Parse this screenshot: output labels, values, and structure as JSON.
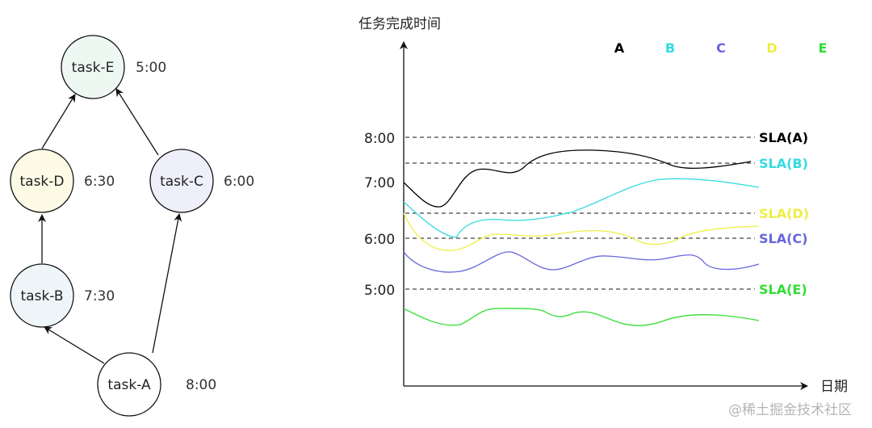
{
  "dag": {
    "nodes": [
      {
        "id": "E",
        "label": "task-E",
        "time": "5:00",
        "fill": "#eef8f3"
      },
      {
        "id": "D",
        "label": "task-D",
        "time": "6:30",
        "fill": "#fdfbe6"
      },
      {
        "id": "C",
        "label": "task-C",
        "time": "6:00",
        "fill": "#eeeffa"
      },
      {
        "id": "B",
        "label": "task-B",
        "time": "7:30",
        "fill": "#eef6f9"
      },
      {
        "id": "A",
        "label": "task-A",
        "time": "8:00",
        "fill": "#ffffff"
      }
    ],
    "edges": [
      {
        "from": "D",
        "to": "E"
      },
      {
        "from": "C",
        "to": "E"
      },
      {
        "from": "B",
        "to": "D"
      },
      {
        "from": "A",
        "to": "B"
      },
      {
        "from": "A",
        "to": "C"
      }
    ]
  },
  "chart": {
    "ylabel": "任务完成时间",
    "xlabel": "日期",
    "yticks": [
      "8:00",
      "7:00",
      "6:00",
      "5:00"
    ],
    "legend": [
      {
        "label": "A",
        "color": "#000000"
      },
      {
        "label": "B",
        "color": "#33dbe0"
      },
      {
        "label": "C",
        "color": "#6666dd"
      },
      {
        "label": "D",
        "color": "#eeee44"
      },
      {
        "label": "E",
        "color": "#33dd33"
      }
    ],
    "sla_lines": [
      {
        "label": "SLA(A)",
        "color": "#000000"
      },
      {
        "label": "SLA(B)",
        "color": "#33dbe0"
      },
      {
        "label": "SLA(D)",
        "color": "#eeee44"
      },
      {
        "label": "SLA(C)",
        "color": "#6666dd"
      },
      {
        "label": "SLA(E)",
        "color": "#33dd33"
      }
    ]
  },
  "watermark": "@稀土掘金技术社区"
}
